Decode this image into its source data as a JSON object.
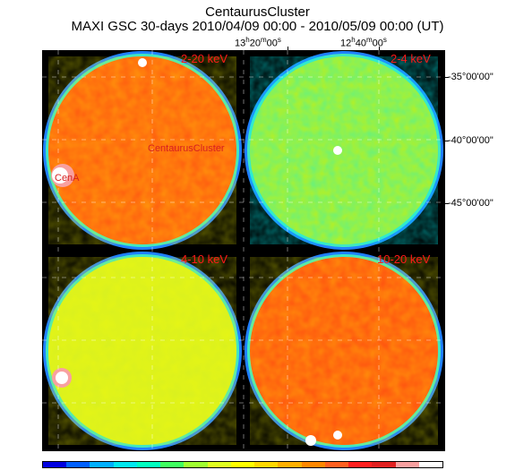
{
  "header": {
    "title": "CentaurusCluster",
    "subtitle": "MAXI GSC 30-days 2010/04/09 00:00 - 2010/05/09 00:00 (UT)"
  },
  "ra_labels": [
    {
      "h": "13",
      "m": "20",
      "s": "00"
    },
    {
      "h": "12",
      "m": "40",
      "s": "00"
    }
  ],
  "dec_labels": [
    "-35°00'00\"",
    "-40°00'00\"",
    "-45°00'00\""
  ],
  "panels": [
    {
      "band": "2-20 keV",
      "fill": "#ff5a10"
    },
    {
      "band": "2-4 keV",
      "fill": "#b8f020"
    },
    {
      "band": "4-10 keV",
      "fill": "#d8f020"
    },
    {
      "band": "10-20 keV",
      "fill": "#ff5010"
    }
  ],
  "sources": [
    {
      "label": "CentaurusCluster"
    },
    {
      "label": "CenA"
    }
  ],
  "colorbar": [
    "#0000e0",
    "#0060ff",
    "#00b0ff",
    "#00e8f0",
    "#00ffc0",
    "#40ff60",
    "#a0ff30",
    "#e0ff20",
    "#ffff00",
    "#ffd800",
    "#ffb000",
    "#ff8800",
    "#ff6020",
    "#ff2020",
    "#e02020",
    "#f8a0a0",
    "#ffffff"
  ]
}
